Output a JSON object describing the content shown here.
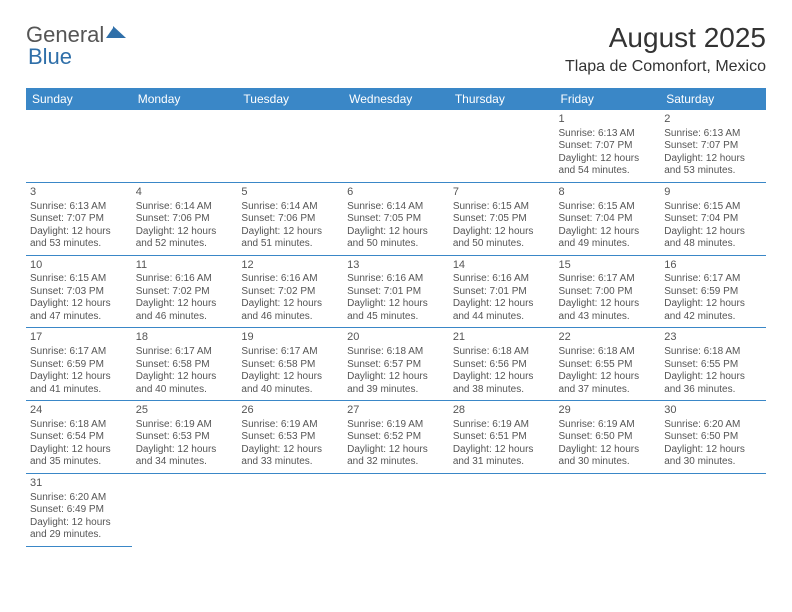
{
  "logo": {
    "general": "General",
    "blue": "Blue"
  },
  "title": "August 2025",
  "location": "Tlapa de Comonfort, Mexico",
  "colors": {
    "header_bg": "#3a87c7",
    "header_text": "#ffffff",
    "border": "#3a87c7",
    "text": "#555555",
    "logo_gray": "#555555",
    "logo_blue": "#2f6fa9",
    "background": "#ffffff"
  },
  "days_of_week": [
    "Sunday",
    "Monday",
    "Tuesday",
    "Wednesday",
    "Thursday",
    "Friday",
    "Saturday"
  ],
  "first_weekday": 5,
  "days": [
    {
      "n": 1,
      "sunrise": "6:13 AM",
      "sunset": "7:07 PM",
      "daylight": "12 hours and 54 minutes."
    },
    {
      "n": 2,
      "sunrise": "6:13 AM",
      "sunset": "7:07 PM",
      "daylight": "12 hours and 53 minutes."
    },
    {
      "n": 3,
      "sunrise": "6:13 AM",
      "sunset": "7:07 PM",
      "daylight": "12 hours and 53 minutes."
    },
    {
      "n": 4,
      "sunrise": "6:14 AM",
      "sunset": "7:06 PM",
      "daylight": "12 hours and 52 minutes."
    },
    {
      "n": 5,
      "sunrise": "6:14 AM",
      "sunset": "7:06 PM",
      "daylight": "12 hours and 51 minutes."
    },
    {
      "n": 6,
      "sunrise": "6:14 AM",
      "sunset": "7:05 PM",
      "daylight": "12 hours and 50 minutes."
    },
    {
      "n": 7,
      "sunrise": "6:15 AM",
      "sunset": "7:05 PM",
      "daylight": "12 hours and 50 minutes."
    },
    {
      "n": 8,
      "sunrise": "6:15 AM",
      "sunset": "7:04 PM",
      "daylight": "12 hours and 49 minutes."
    },
    {
      "n": 9,
      "sunrise": "6:15 AM",
      "sunset": "7:04 PM",
      "daylight": "12 hours and 48 minutes."
    },
    {
      "n": 10,
      "sunrise": "6:15 AM",
      "sunset": "7:03 PM",
      "daylight": "12 hours and 47 minutes."
    },
    {
      "n": 11,
      "sunrise": "6:16 AM",
      "sunset": "7:02 PM",
      "daylight": "12 hours and 46 minutes."
    },
    {
      "n": 12,
      "sunrise": "6:16 AM",
      "sunset": "7:02 PM",
      "daylight": "12 hours and 46 minutes."
    },
    {
      "n": 13,
      "sunrise": "6:16 AM",
      "sunset": "7:01 PM",
      "daylight": "12 hours and 45 minutes."
    },
    {
      "n": 14,
      "sunrise": "6:16 AM",
      "sunset": "7:01 PM",
      "daylight": "12 hours and 44 minutes."
    },
    {
      "n": 15,
      "sunrise": "6:17 AM",
      "sunset": "7:00 PM",
      "daylight": "12 hours and 43 minutes."
    },
    {
      "n": 16,
      "sunrise": "6:17 AM",
      "sunset": "6:59 PM",
      "daylight": "12 hours and 42 minutes."
    },
    {
      "n": 17,
      "sunrise": "6:17 AM",
      "sunset": "6:59 PM",
      "daylight": "12 hours and 41 minutes."
    },
    {
      "n": 18,
      "sunrise": "6:17 AM",
      "sunset": "6:58 PM",
      "daylight": "12 hours and 40 minutes."
    },
    {
      "n": 19,
      "sunrise": "6:17 AM",
      "sunset": "6:58 PM",
      "daylight": "12 hours and 40 minutes."
    },
    {
      "n": 20,
      "sunrise": "6:18 AM",
      "sunset": "6:57 PM",
      "daylight": "12 hours and 39 minutes."
    },
    {
      "n": 21,
      "sunrise": "6:18 AM",
      "sunset": "6:56 PM",
      "daylight": "12 hours and 38 minutes."
    },
    {
      "n": 22,
      "sunrise": "6:18 AM",
      "sunset": "6:55 PM",
      "daylight": "12 hours and 37 minutes."
    },
    {
      "n": 23,
      "sunrise": "6:18 AM",
      "sunset": "6:55 PM",
      "daylight": "12 hours and 36 minutes."
    },
    {
      "n": 24,
      "sunrise": "6:18 AM",
      "sunset": "6:54 PM",
      "daylight": "12 hours and 35 minutes."
    },
    {
      "n": 25,
      "sunrise": "6:19 AM",
      "sunset": "6:53 PM",
      "daylight": "12 hours and 34 minutes."
    },
    {
      "n": 26,
      "sunrise": "6:19 AM",
      "sunset": "6:53 PM",
      "daylight": "12 hours and 33 minutes."
    },
    {
      "n": 27,
      "sunrise": "6:19 AM",
      "sunset": "6:52 PM",
      "daylight": "12 hours and 32 minutes."
    },
    {
      "n": 28,
      "sunrise": "6:19 AM",
      "sunset": "6:51 PM",
      "daylight": "12 hours and 31 minutes."
    },
    {
      "n": 29,
      "sunrise": "6:19 AM",
      "sunset": "6:50 PM",
      "daylight": "12 hours and 30 minutes."
    },
    {
      "n": 30,
      "sunrise": "6:20 AM",
      "sunset": "6:50 PM",
      "daylight": "12 hours and 30 minutes."
    },
    {
      "n": 31,
      "sunrise": "6:20 AM",
      "sunset": "6:49 PM",
      "daylight": "12 hours and 29 minutes."
    }
  ],
  "labels": {
    "sunrise": "Sunrise:",
    "sunset": "Sunset:",
    "daylight": "Daylight:"
  }
}
